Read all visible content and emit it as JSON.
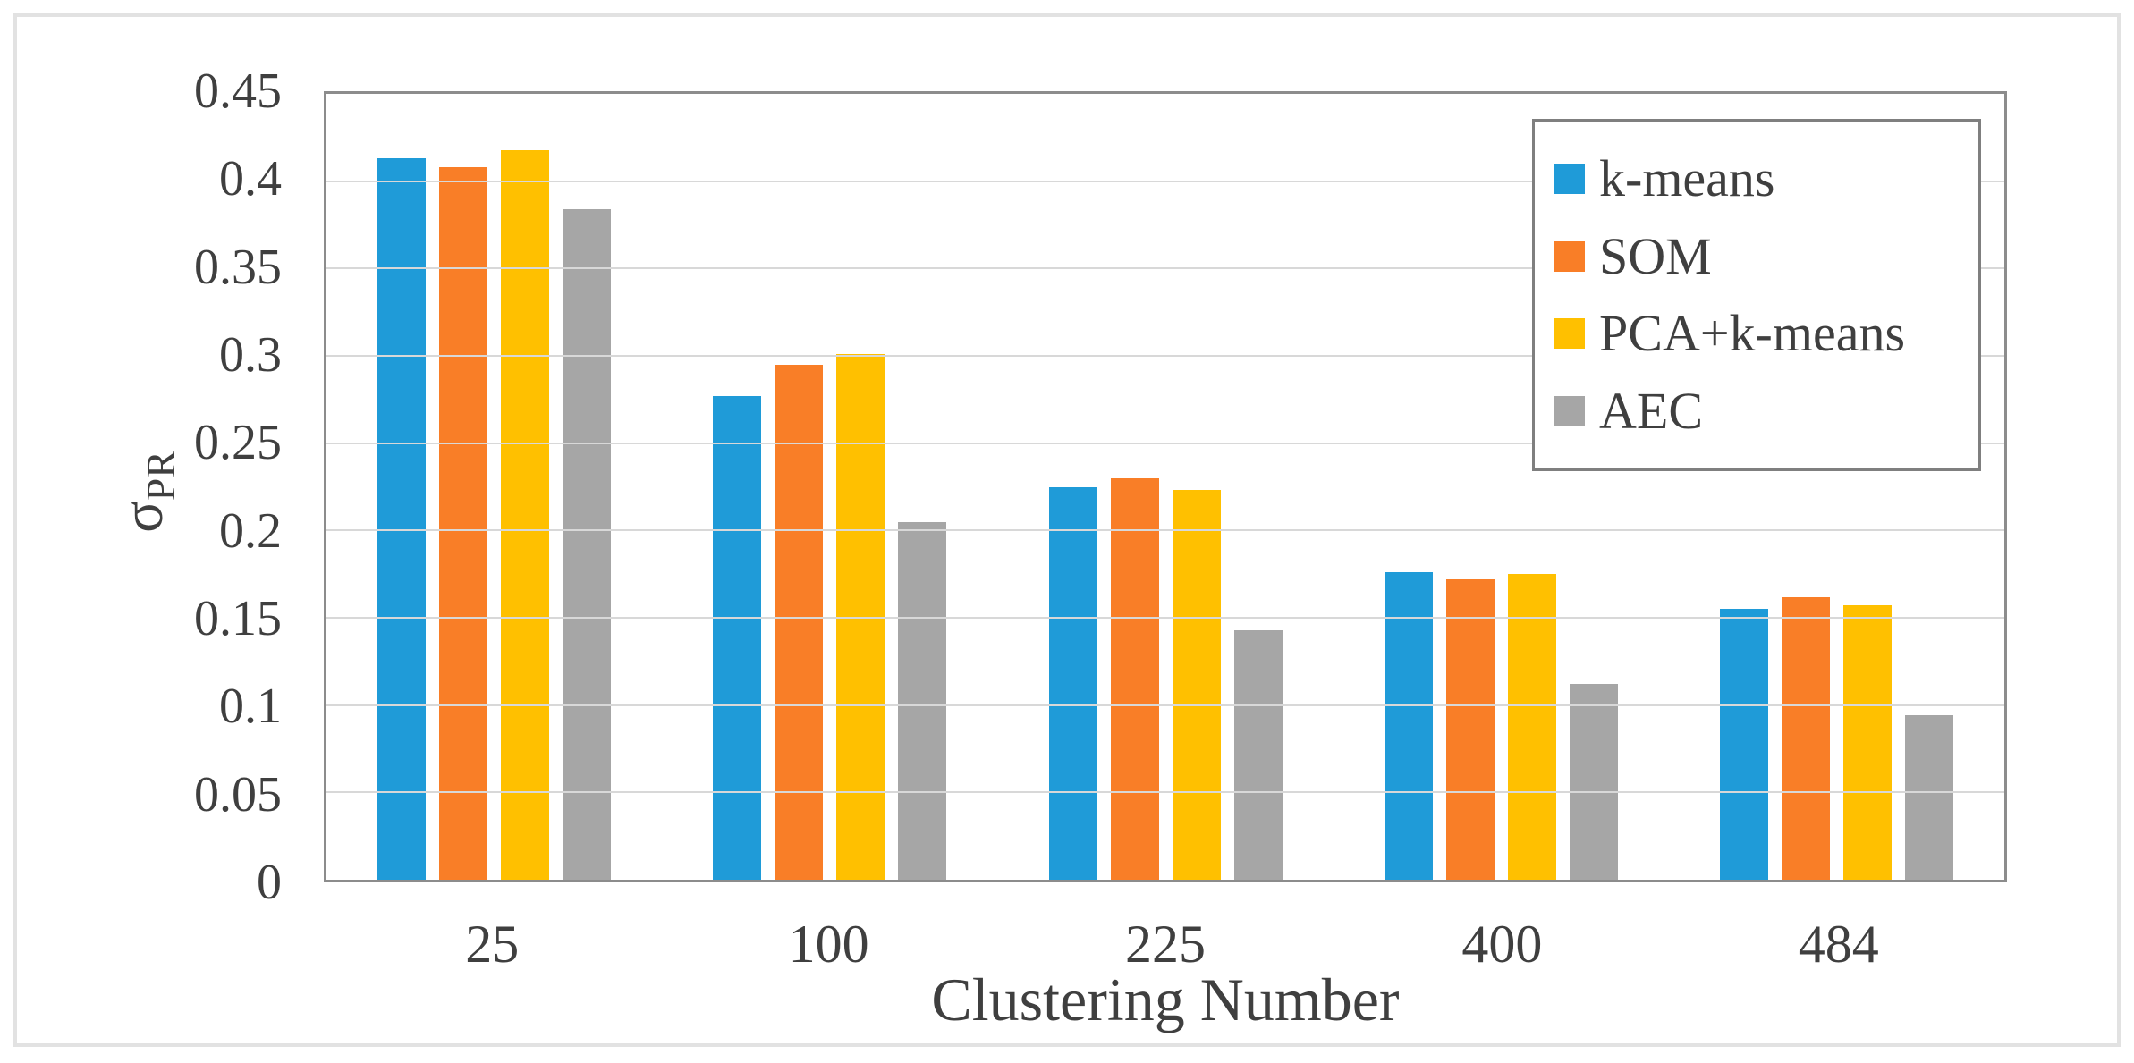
{
  "chart_data": {
    "type": "bar",
    "title": "",
    "xlabel": "Clustering Number",
    "ylabel_base": "σ",
    "ylabel_subscript": "PR",
    "categories": [
      "25",
      "100",
      "225",
      "400",
      "484"
    ],
    "series": [
      {
        "name": "k-means",
        "color": "#1f9bd8",
        "values": [
          0.413,
          0.277,
          0.225,
          0.176,
          0.155
        ]
      },
      {
        "name": "SOM",
        "color": "#f97e27",
        "values": [
          0.408,
          0.295,
          0.23,
          0.172,
          0.162
        ]
      },
      {
        "name": "PCA+k-means",
        "color": "#ffc000",
        "values": [
          0.418,
          0.301,
          0.223,
          0.175,
          0.157
        ]
      },
      {
        "name": "AEC",
        "color": "#a6a6a6",
        "values": [
          0.384,
          0.205,
          0.143,
          0.112,
          0.094
        ]
      }
    ],
    "ylim": [
      0,
      0.45
    ],
    "ytick_step": 0.05,
    "ytick_labels": [
      "0.45",
      "0.4",
      "0.35",
      "0.3",
      "0.25",
      "0.2",
      "0.15",
      "0.1",
      "0.05",
      "0"
    ],
    "grid": true,
    "legend_position": "top-right"
  },
  "style": {
    "text_color": "#3f3f3f",
    "gridline_color": "#d8d8d8",
    "axis_color": "#8c8c8c",
    "legend_border_color": "#7f7f7f",
    "frame_border_color": "#e2e2e2",
    "background": "#ffffff"
  }
}
